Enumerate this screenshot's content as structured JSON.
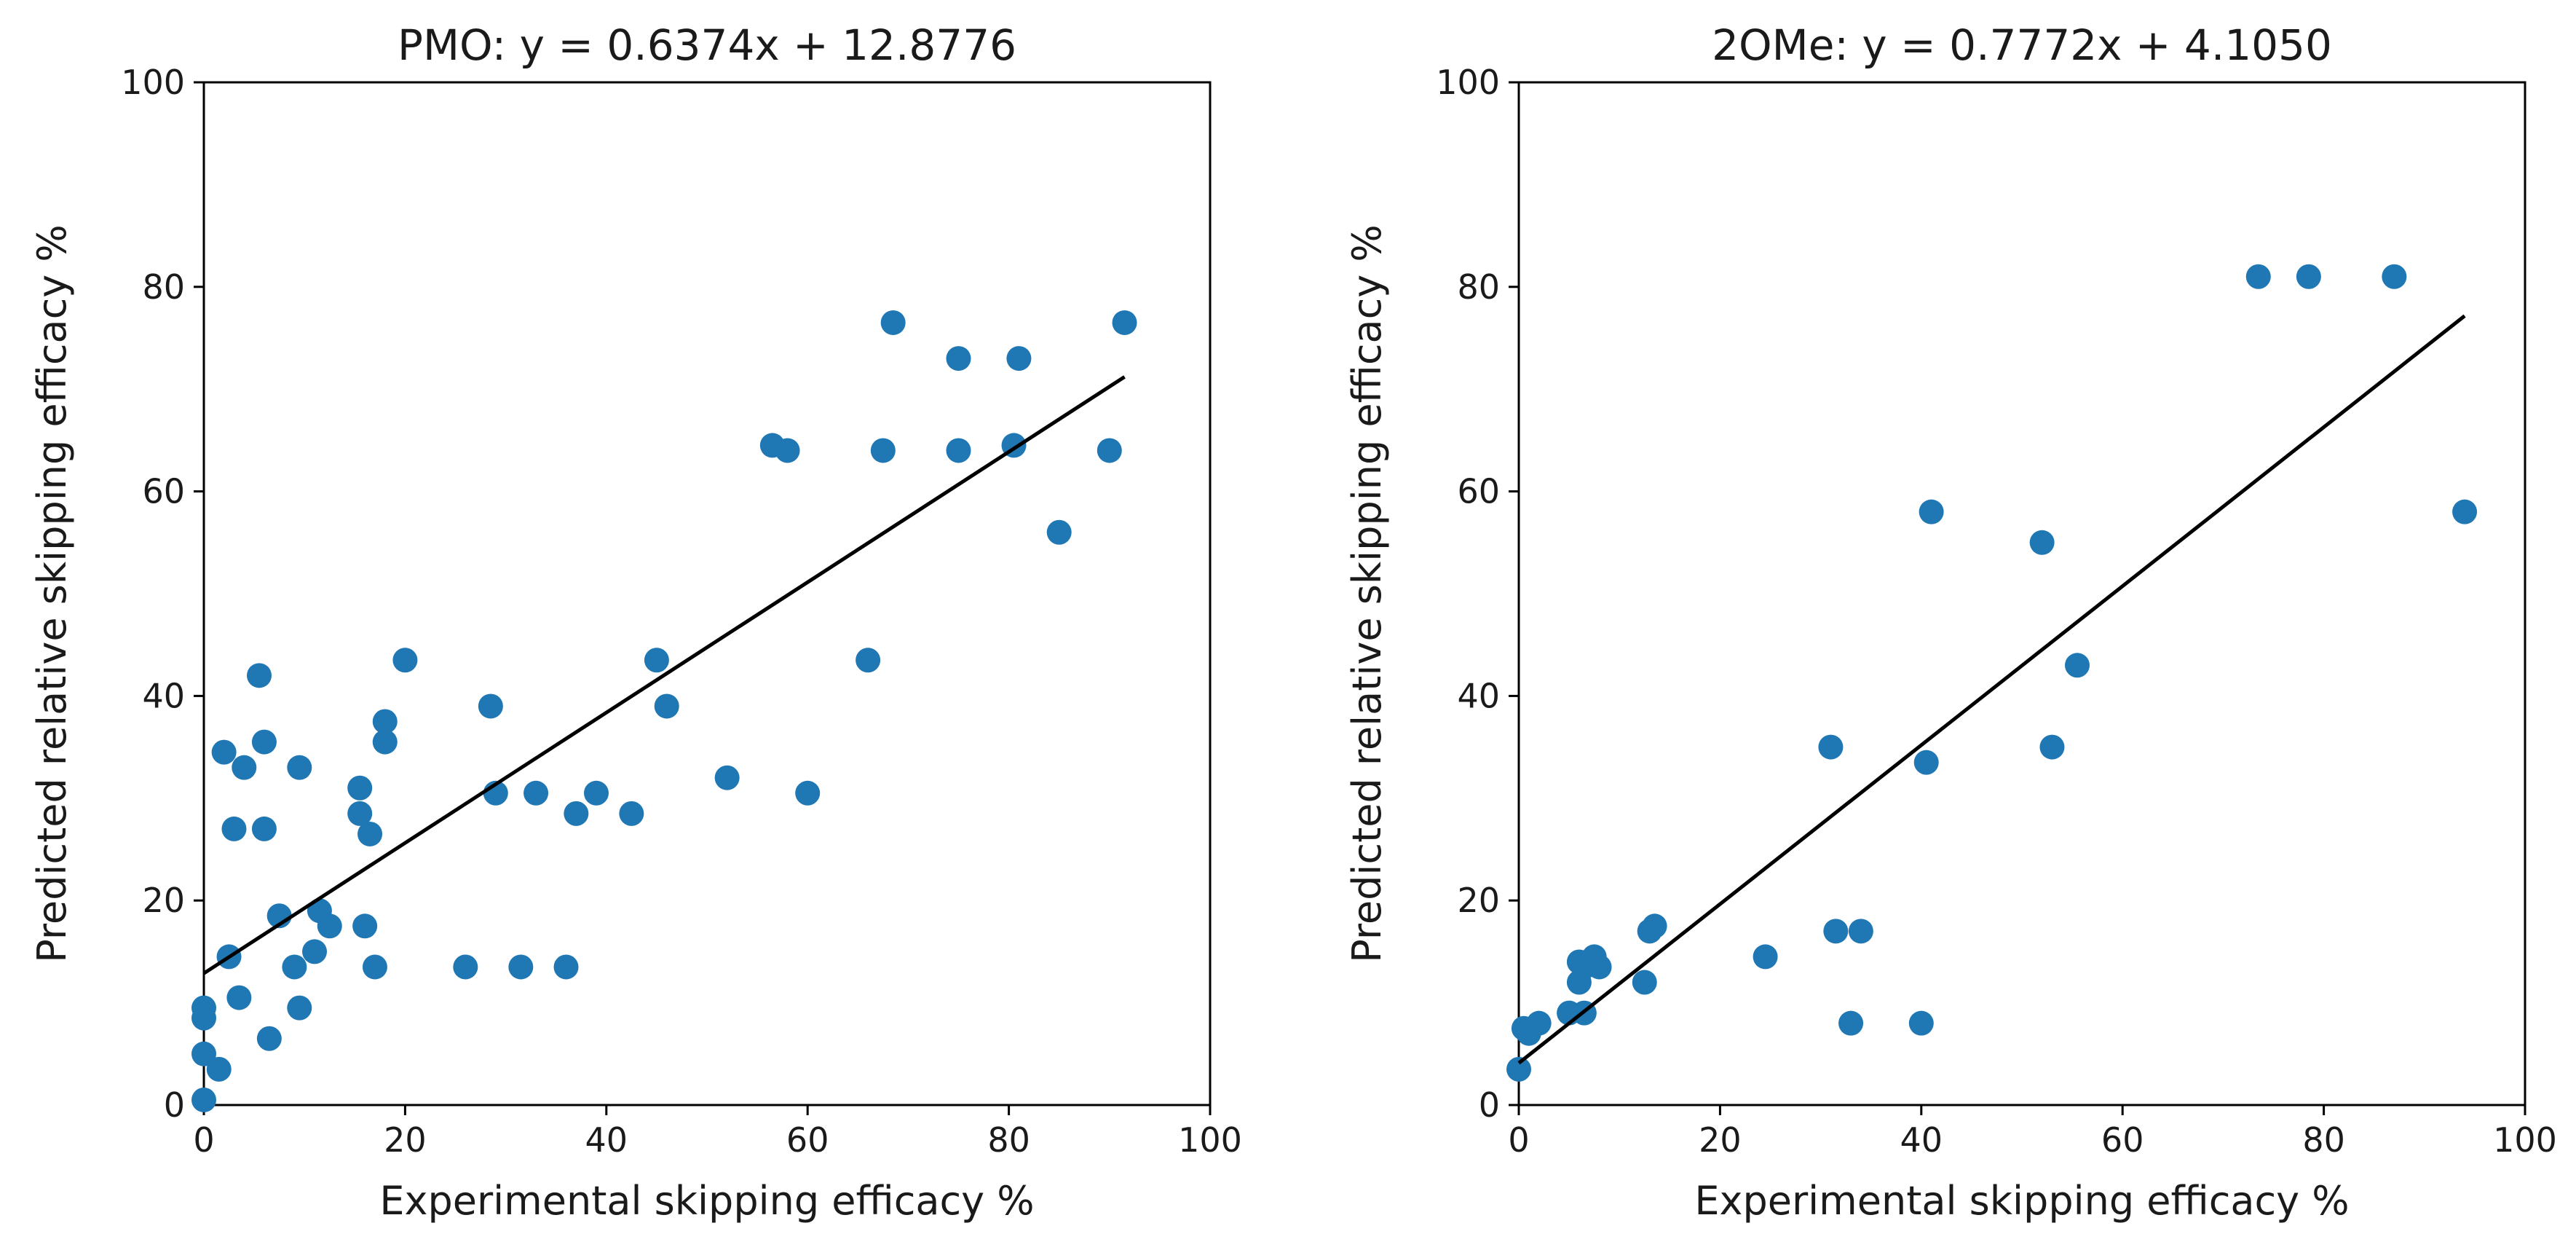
{
  "chart_data": [
    {
      "type": "scatter",
      "title": "PMO: y = 0.6374x + 12.8776",
      "xlabel": "Experimental skipping efficacy %",
      "ylabel": "Predicted relative skipping efficacy %",
      "xlim": [
        0,
        100
      ],
      "ylim": [
        0,
        100
      ],
      "xticks": [
        "0",
        "20",
        "40",
        "60",
        "80",
        "100"
      ],
      "yticks": [
        "0",
        "20",
        "40",
        "60",
        "80",
        "100"
      ],
      "grid": false,
      "legend": "none",
      "point_color": "#1f77b4",
      "line_color": "#000000",
      "fit": {
        "slope": 0.6374,
        "intercept": 12.8776,
        "x_range": [
          0,
          91.5
        ]
      },
      "series": [
        {
          "x": [
            0,
            0,
            0,
            0,
            1.5,
            2,
            2.5,
            3,
            3.5,
            4,
            5.5,
            6,
            6,
            6.5,
            7.5,
            9,
            9.5,
            9.5,
            11,
            11.5,
            12.5,
            15.5,
            15.5,
            16,
            16.5,
            17,
            18,
            18,
            20,
            26,
            28.5,
            29,
            31.5,
            33,
            36,
            37,
            39,
            42.5,
            45,
            46,
            52,
            56.5,
            58,
            60,
            66,
            67.5,
            68.5,
            75,
            75,
            80.5,
            81,
            85,
            90,
            91.5
          ],
          "y": [
            0.5,
            5,
            8.5,
            9.5,
            3.5,
            34.5,
            14.5,
            27,
            10.5,
            33,
            42,
            27,
            35.5,
            6.5,
            18.5,
            13.5,
            9.5,
            33,
            15,
            19,
            17.5,
            31,
            28.5,
            17.5,
            26.5,
            13.5,
            37.5,
            35.5,
            43.5,
            13.5,
            39,
            30.5,
            13.5,
            30.5,
            13.5,
            28.5,
            30.5,
            28.5,
            43.5,
            39,
            32,
            64.5,
            64,
            30.5,
            43.5,
            64,
            76.5,
            73,
            64,
            64.5,
            73,
            56,
            64,
            76.5
          ]
        }
      ]
    },
    {
      "type": "scatter",
      "title": "2OMe: y = 0.7772x + 4.1050",
      "xlabel": "Experimental skipping efficacy %",
      "ylabel": "Predicted relative skipping efficacy %",
      "xlim": [
        0,
        100
      ],
      "ylim": [
        0,
        100
      ],
      "xticks": [
        "0",
        "20",
        "40",
        "60",
        "80",
        "100"
      ],
      "yticks": [
        "0",
        "20",
        "40",
        "60",
        "80",
        "100"
      ],
      "grid": false,
      "legend": "none",
      "point_color": "#1f77b4",
      "line_color": "#000000",
      "fit": {
        "slope": 0.7772,
        "intercept": 4.105,
        "x_range": [
          0,
          94
        ]
      },
      "series": [
        {
          "x": [
            0,
            0.5,
            1,
            2,
            5,
            6,
            6,
            6.5,
            6.5,
            7.5,
            8,
            12.5,
            13,
            13.5,
            24.5,
            31,
            31.5,
            33,
            34,
            40,
            40.5,
            41,
            52,
            53,
            55.5,
            73.5,
            78.5,
            87,
            94
          ],
          "y": [
            3.5,
            7.5,
            7,
            8,
            9,
            12,
            14,
            13.5,
            9,
            14.5,
            13.5,
            12,
            17,
            17.5,
            14.5,
            35,
            17,
            8,
            17,
            8,
            33.5,
            58,
            55,
            35,
            43,
            81,
            81,
            81,
            58
          ]
        }
      ]
    }
  ]
}
